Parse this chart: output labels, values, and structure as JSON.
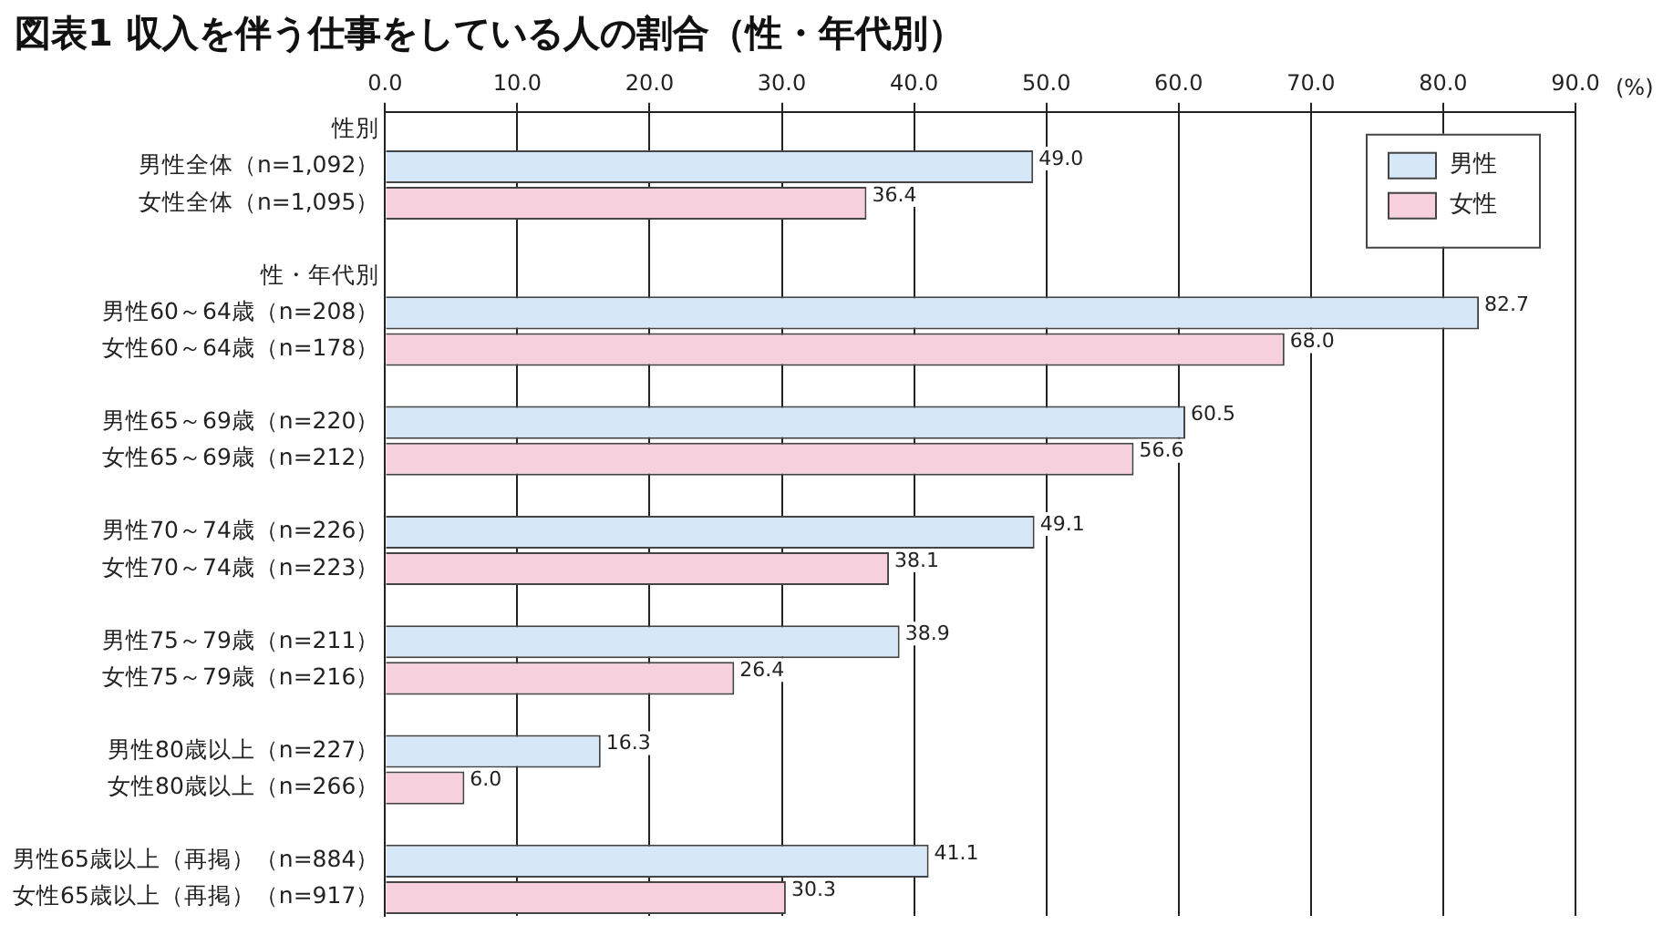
{
  "chart_data": {
    "type": "bar",
    "orientation": "horizontal",
    "title": "図表1 収入を伴う仕事をしている人の割合（性・年代別）",
    "xlabel": "(%)",
    "categories": [
      "性別",
      "男性全体（n=1,092）",
      "女性全体（n=1,095）",
      null,
      "性・年代別",
      "男性60～64歳（n=208）",
      "女性60～64歳（n=178）",
      null,
      "男性65～69歳（n=220）",
      "女性65～69歳（n=212）",
      null,
      "男性70～74歳（n=226）",
      "女性70～74歳（n=223）",
      null,
      "男性75～79歳（n=211）",
      "女性75～79歳（n=216）",
      null,
      "男性80歳以上（n=227）",
      "女性80歳以上（n=266）",
      null,
      "男性65歳以上（再掲）（n=884）",
      "女性65歳以上（再掲）（n=917）"
    ],
    "series": [
      {
        "name": "男性",
        "color": "#d6e8f7",
        "values": [
          null,
          49.0,
          null,
          null,
          null,
          82.7,
          null,
          null,
          60.5,
          null,
          null,
          49.1,
          null,
          null,
          38.9,
          null,
          null,
          16.3,
          null,
          null,
          41.1,
          null
        ],
        "value_labels": [
          null,
          "49.0",
          null,
          null,
          null,
          "82.7",
          null,
          null,
          "60.5",
          null,
          null,
          "49.1",
          null,
          null,
          "38.9",
          null,
          null,
          "16.3",
          null,
          null,
          "41.1",
          null
        ]
      },
      {
        "name": "女性",
        "color": "#f6d0dd",
        "values": [
          null,
          null,
          36.4,
          null,
          null,
          null,
          68.0,
          null,
          null,
          56.6,
          null,
          null,
          38.1,
          null,
          null,
          26.4,
          null,
          null,
          6.0,
          null,
          null,
          30.3
        ],
        "value_labels": [
          null,
          null,
          "36.4",
          null,
          null,
          null,
          "68.0",
          null,
          null,
          "56.6",
          null,
          null,
          "38.1",
          null,
          null,
          "26.4",
          null,
          null,
          "6.0",
          null,
          null,
          "30.3"
        ]
      }
    ],
    "xlim": [
      0,
      90
    ],
    "xticks": [
      {
        "value": 0,
        "label": "0.0"
      },
      {
        "value": 10,
        "label": "10.0"
      },
      {
        "value": 20,
        "label": "20.0"
      },
      {
        "value": 30,
        "label": "30.0"
      },
      {
        "value": 40,
        "label": "40.0"
      },
      {
        "value": 50,
        "label": "50.0"
      },
      {
        "value": 60,
        "label": "60.0"
      },
      {
        "value": 70,
        "label": "70.0"
      },
      {
        "value": 80,
        "label": "80.0"
      },
      {
        "value": 90,
        "label": "90.0"
      }
    ],
    "grid": "x",
    "legend": "top right"
  }
}
